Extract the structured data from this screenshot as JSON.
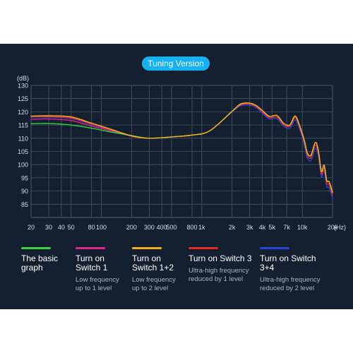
{
  "header": {
    "title": "Tuning Version"
  },
  "chart_data": {
    "type": "line",
    "title": "Tuning Version",
    "ylabel": "(dB)",
    "xlabel": "(Hz)",
    "x_scale": "log",
    "xlim": [
      20,
      20000
    ],
    "ylim": [
      80,
      130
    ],
    "yticks": [
      85,
      90,
      95,
      100,
      105,
      110,
      115,
      120,
      125,
      130
    ],
    "xticks": [
      {
        "value": 20,
        "label": "20"
      },
      {
        "value": 30,
        "label": "30"
      },
      {
        "value": 40,
        "label": "40"
      },
      {
        "value": 50,
        "label": "50"
      },
      {
        "value": 80,
        "label": "80"
      },
      {
        "value": 100,
        "label": "100"
      },
      {
        "value": 200,
        "label": "200"
      },
      {
        "value": 300,
        "label": "300"
      },
      {
        "value": 400,
        "label": "400"
      },
      {
        "value": 500,
        "label": "500"
      },
      {
        "value": 800,
        "label": "800"
      },
      {
        "value": 1000,
        "label": "1k"
      },
      {
        "value": 2000,
        "label": "2k"
      },
      {
        "value": 3000,
        "label": "3k"
      },
      {
        "value": 4000,
        "label": "4k"
      },
      {
        "value": 5000,
        "label": "5k"
      },
      {
        "value": 7000,
        "label": "7k"
      },
      {
        "value": 10000,
        "label": "10k"
      },
      {
        "value": 20000,
        "label": "20k"
      }
    ],
    "grid": true,
    "x": [
      20,
      30,
      50,
      80,
      120,
      200,
      300,
      500,
      800,
      1200,
      2000,
      2400,
      2800,
      3400,
      4000,
      4700,
      5600,
      6500,
      7500,
      8500,
      9500,
      10500,
      11200,
      12200,
      13500,
      14500,
      15500,
      16500,
      17500,
      18500,
      20000
    ],
    "series": [
      {
        "name": "The basic graph",
        "color": "#35d641",
        "values": [
          115.5,
          115.6,
          115.0,
          113.8,
          112.5,
          111.0,
          110.0,
          110.5,
          111.2,
          112.8,
          120.2,
          122.8,
          123.4,
          122.6,
          120.5,
          118.3,
          118.6,
          115.7,
          115.0,
          118.4,
          114.3,
          109.0,
          104.5,
          103.5,
          108.4,
          105.0,
          97.5,
          99.8,
          94.0,
          93.5,
          89.5
        ]
      },
      {
        "name": "Turn on Switch 1",
        "color": "#e0258f",
        "values": [
          117.2,
          117.3,
          116.7,
          114.6,
          113.0,
          110.8,
          110.0,
          110.5,
          111.2,
          112.8,
          120.2,
          122.8,
          123.4,
          122.6,
          120.5,
          118.3,
          118.6,
          115.7,
          115.0,
          118.4,
          114.3,
          109.0,
          104.5,
          103.5,
          108.4,
          105.0,
          97.5,
          99.8,
          94.0,
          93.5,
          89.5
        ]
      },
      {
        "name": "Turn on Switch 1+2",
        "color": "#f2b01e",
        "values": [
          118.4,
          118.5,
          118.1,
          115.7,
          113.6,
          110.9,
          110.0,
          110.5,
          111.2,
          112.8,
          120.2,
          122.8,
          123.4,
          122.6,
          120.5,
          118.3,
          118.6,
          115.7,
          115.0,
          118.4,
          114.3,
          109.0,
          104.5,
          103.5,
          108.4,
          105.0,
          97.5,
          99.8,
          94.0,
          93.5,
          89.5
        ]
      },
      {
        "name": "Turn on Switch 3",
        "color": "#e8262b",
        "values": [
          118.2,
          118.2,
          117.7,
          115.4,
          113.4,
          110.8,
          110.0,
          110.5,
          111.2,
          112.8,
          120.2,
          122.5,
          123.0,
          122.2,
          120.0,
          117.8,
          118.0,
          115.2,
          114.5,
          117.8,
          113.7,
          108.2,
          103.6,
          102.6,
          107.4,
          104.0,
          96.5,
          98.8,
          93.0,
          92.5,
          88.5
        ]
      },
      {
        "name": "Turn on Switch 3+4",
        "color": "#2743d8",
        "values": [
          118.0,
          118.0,
          117.5,
          115.2,
          113.3,
          110.8,
          110.0,
          110.5,
          111.2,
          112.8,
          120.0,
          122.2,
          122.6,
          121.8,
          119.5,
          117.3,
          117.4,
          114.6,
          113.8,
          117.0,
          112.9,
          107.3,
          102.6,
          101.6,
          106.3,
          102.8,
          95.4,
          97.7,
          91.8,
          91.3,
          87.3
        ]
      }
    ]
  },
  "legend": [
    {
      "label": "The basic\ngraph",
      "color": "#35d641",
      "desc": ""
    },
    {
      "label": "Turn on\nSwitch 1",
      "color": "#e0258f",
      "desc": "Low frequency\nup to 1 level"
    },
    {
      "label": "Turn on\nSwitch 1+2",
      "color": "#f2b01e",
      "desc": "Low frequency\nup to 2 level"
    },
    {
      "label": "Turn on Switch 3",
      "color": "#e8262b",
      "desc": "Ultra-high frequency\nreduced by 1 level"
    },
    {
      "label": "Turn on Switch\n3+4",
      "color": "#2743d8",
      "desc": "Ultra-high frequency\nreduced by 2 level"
    }
  ]
}
